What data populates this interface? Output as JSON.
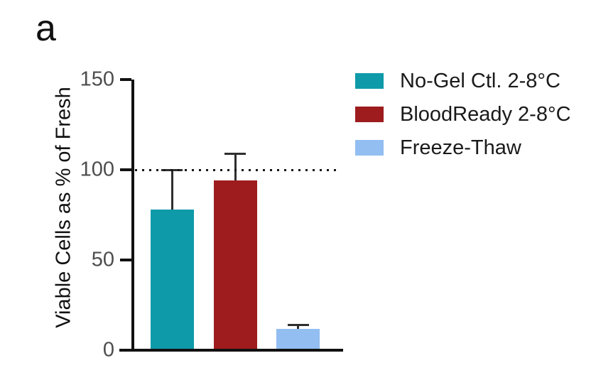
{
  "panel_label": "a",
  "chart_data": {
    "type": "bar",
    "categories": [
      "No-Gel Ctl. 2-8°C",
      "BloodReady 2-8°C",
      "Freeze-Thaw"
    ],
    "values": [
      78,
      94,
      12
    ],
    "error_up": [
      22,
      15,
      2
    ],
    "colors": [
      "#0E9AA9",
      "#9E1C1E",
      "#92BEF2"
    ],
    "title": "",
    "xlabel": "",
    "ylabel": "Viable Cells as % of Fresh",
    "ylim": [
      0,
      150
    ],
    "yticks": [
      0,
      50,
      100,
      150
    ],
    "reference_line_y": 100,
    "reference_line_style": "dotted",
    "grid": false,
    "legend": {
      "position": "top-right",
      "entries": [
        {
          "label": "No-Gel Ctl. 2-8°C",
          "color": "#0E9AA9"
        },
        {
          "label": "BloodReady 2-8°C",
          "color": "#9E1C1E"
        },
        {
          "label": "Freeze-Thaw",
          "color": "#92BEF2"
        }
      ]
    }
  }
}
